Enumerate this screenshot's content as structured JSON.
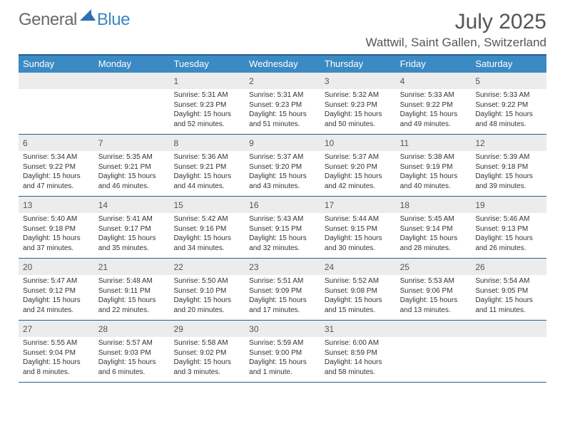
{
  "logo": {
    "general": "General",
    "blue": "Blue"
  },
  "title": "July 2025",
  "location": "Wattwil, Saint Gallen, Switzerland",
  "colors": {
    "header_bar": "#3b8ac4",
    "border": "#2a5d8c",
    "day_num_bg": "#ececec",
    "text_main": "#333333",
    "text_muted": "#555555",
    "logo_gray": "#6a6a6a",
    "logo_blue": "#3d85c6",
    "background": "#ffffff"
  },
  "typography": {
    "title_fontsize_pt": 22,
    "location_fontsize_pt": 13,
    "dow_fontsize_pt": 10,
    "daynum_fontsize_pt": 9,
    "body_fontsize_pt": 7.5
  },
  "days_of_week": [
    "Sunday",
    "Monday",
    "Tuesday",
    "Wednesday",
    "Thursday",
    "Friday",
    "Saturday"
  ],
  "weeks": [
    [
      {
        "n": "",
        "sunrise": "",
        "sunset": "",
        "daylight": ""
      },
      {
        "n": "",
        "sunrise": "",
        "sunset": "",
        "daylight": ""
      },
      {
        "n": "1",
        "sunrise": "Sunrise: 5:31 AM",
        "sunset": "Sunset: 9:23 PM",
        "daylight": "Daylight: 15 hours and 52 minutes."
      },
      {
        "n": "2",
        "sunrise": "Sunrise: 5:31 AM",
        "sunset": "Sunset: 9:23 PM",
        "daylight": "Daylight: 15 hours and 51 minutes."
      },
      {
        "n": "3",
        "sunrise": "Sunrise: 5:32 AM",
        "sunset": "Sunset: 9:23 PM",
        "daylight": "Daylight: 15 hours and 50 minutes."
      },
      {
        "n": "4",
        "sunrise": "Sunrise: 5:33 AM",
        "sunset": "Sunset: 9:22 PM",
        "daylight": "Daylight: 15 hours and 49 minutes."
      },
      {
        "n": "5",
        "sunrise": "Sunrise: 5:33 AM",
        "sunset": "Sunset: 9:22 PM",
        "daylight": "Daylight: 15 hours and 48 minutes."
      }
    ],
    [
      {
        "n": "6",
        "sunrise": "Sunrise: 5:34 AM",
        "sunset": "Sunset: 9:22 PM",
        "daylight": "Daylight: 15 hours and 47 minutes."
      },
      {
        "n": "7",
        "sunrise": "Sunrise: 5:35 AM",
        "sunset": "Sunset: 9:21 PM",
        "daylight": "Daylight: 15 hours and 46 minutes."
      },
      {
        "n": "8",
        "sunrise": "Sunrise: 5:36 AM",
        "sunset": "Sunset: 9:21 PM",
        "daylight": "Daylight: 15 hours and 44 minutes."
      },
      {
        "n": "9",
        "sunrise": "Sunrise: 5:37 AM",
        "sunset": "Sunset: 9:20 PM",
        "daylight": "Daylight: 15 hours and 43 minutes."
      },
      {
        "n": "10",
        "sunrise": "Sunrise: 5:37 AM",
        "sunset": "Sunset: 9:20 PM",
        "daylight": "Daylight: 15 hours and 42 minutes."
      },
      {
        "n": "11",
        "sunrise": "Sunrise: 5:38 AM",
        "sunset": "Sunset: 9:19 PM",
        "daylight": "Daylight: 15 hours and 40 minutes."
      },
      {
        "n": "12",
        "sunrise": "Sunrise: 5:39 AM",
        "sunset": "Sunset: 9:18 PM",
        "daylight": "Daylight: 15 hours and 39 minutes."
      }
    ],
    [
      {
        "n": "13",
        "sunrise": "Sunrise: 5:40 AM",
        "sunset": "Sunset: 9:18 PM",
        "daylight": "Daylight: 15 hours and 37 minutes."
      },
      {
        "n": "14",
        "sunrise": "Sunrise: 5:41 AM",
        "sunset": "Sunset: 9:17 PM",
        "daylight": "Daylight: 15 hours and 35 minutes."
      },
      {
        "n": "15",
        "sunrise": "Sunrise: 5:42 AM",
        "sunset": "Sunset: 9:16 PM",
        "daylight": "Daylight: 15 hours and 34 minutes."
      },
      {
        "n": "16",
        "sunrise": "Sunrise: 5:43 AM",
        "sunset": "Sunset: 9:15 PM",
        "daylight": "Daylight: 15 hours and 32 minutes."
      },
      {
        "n": "17",
        "sunrise": "Sunrise: 5:44 AM",
        "sunset": "Sunset: 9:15 PM",
        "daylight": "Daylight: 15 hours and 30 minutes."
      },
      {
        "n": "18",
        "sunrise": "Sunrise: 5:45 AM",
        "sunset": "Sunset: 9:14 PM",
        "daylight": "Daylight: 15 hours and 28 minutes."
      },
      {
        "n": "19",
        "sunrise": "Sunrise: 5:46 AM",
        "sunset": "Sunset: 9:13 PM",
        "daylight": "Daylight: 15 hours and 26 minutes."
      }
    ],
    [
      {
        "n": "20",
        "sunrise": "Sunrise: 5:47 AM",
        "sunset": "Sunset: 9:12 PM",
        "daylight": "Daylight: 15 hours and 24 minutes."
      },
      {
        "n": "21",
        "sunrise": "Sunrise: 5:48 AM",
        "sunset": "Sunset: 9:11 PM",
        "daylight": "Daylight: 15 hours and 22 minutes."
      },
      {
        "n": "22",
        "sunrise": "Sunrise: 5:50 AM",
        "sunset": "Sunset: 9:10 PM",
        "daylight": "Daylight: 15 hours and 20 minutes."
      },
      {
        "n": "23",
        "sunrise": "Sunrise: 5:51 AM",
        "sunset": "Sunset: 9:09 PM",
        "daylight": "Daylight: 15 hours and 17 minutes."
      },
      {
        "n": "24",
        "sunrise": "Sunrise: 5:52 AM",
        "sunset": "Sunset: 9:08 PM",
        "daylight": "Daylight: 15 hours and 15 minutes."
      },
      {
        "n": "25",
        "sunrise": "Sunrise: 5:53 AM",
        "sunset": "Sunset: 9:06 PM",
        "daylight": "Daylight: 15 hours and 13 minutes."
      },
      {
        "n": "26",
        "sunrise": "Sunrise: 5:54 AM",
        "sunset": "Sunset: 9:05 PM",
        "daylight": "Daylight: 15 hours and 11 minutes."
      }
    ],
    [
      {
        "n": "27",
        "sunrise": "Sunrise: 5:55 AM",
        "sunset": "Sunset: 9:04 PM",
        "daylight": "Daylight: 15 hours and 8 minutes."
      },
      {
        "n": "28",
        "sunrise": "Sunrise: 5:57 AM",
        "sunset": "Sunset: 9:03 PM",
        "daylight": "Daylight: 15 hours and 6 minutes."
      },
      {
        "n": "29",
        "sunrise": "Sunrise: 5:58 AM",
        "sunset": "Sunset: 9:02 PM",
        "daylight": "Daylight: 15 hours and 3 minutes."
      },
      {
        "n": "30",
        "sunrise": "Sunrise: 5:59 AM",
        "sunset": "Sunset: 9:00 PM",
        "daylight": "Daylight: 15 hours and 1 minute."
      },
      {
        "n": "31",
        "sunrise": "Sunrise: 6:00 AM",
        "sunset": "Sunset: 8:59 PM",
        "daylight": "Daylight: 14 hours and 58 minutes."
      },
      {
        "n": "",
        "sunrise": "",
        "sunset": "",
        "daylight": ""
      },
      {
        "n": "",
        "sunrise": "",
        "sunset": "",
        "daylight": ""
      }
    ]
  ]
}
